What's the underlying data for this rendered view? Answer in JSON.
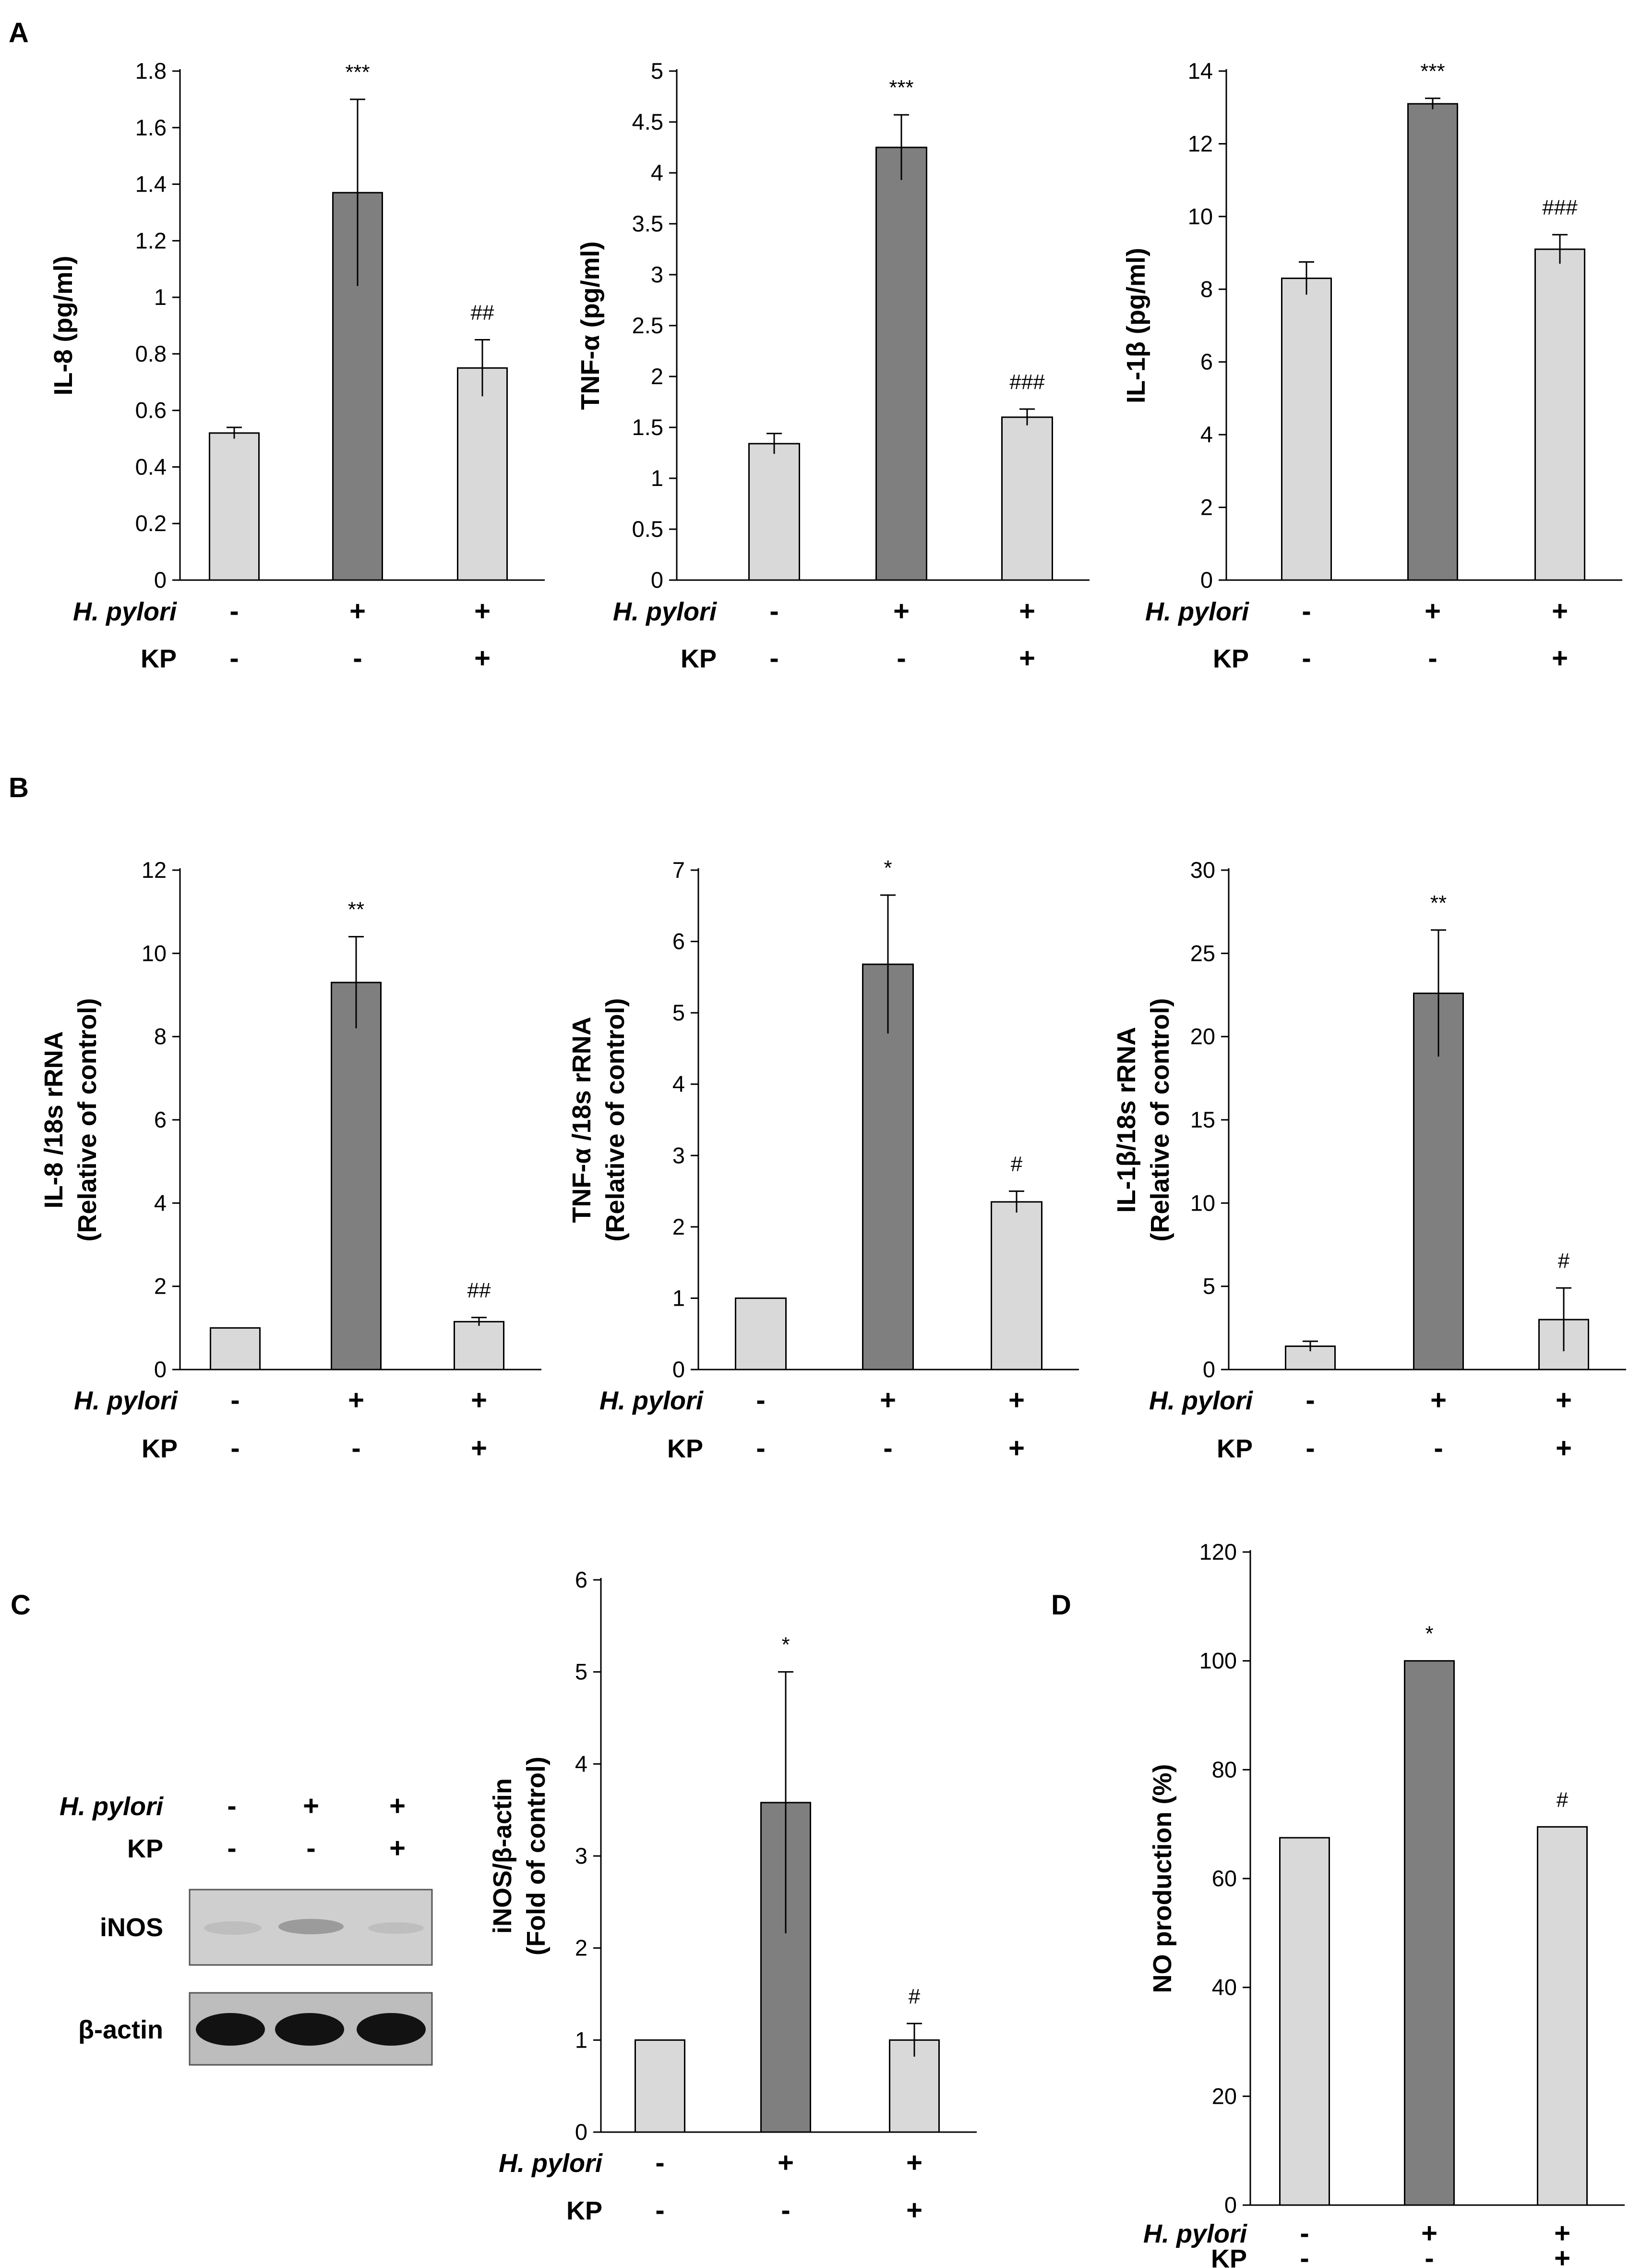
{
  "figure": {
    "panel_labels": [
      "A",
      "B",
      "C",
      "D"
    ]
  },
  "conditions": {
    "row1_label": "H. pylori",
    "row2_label": "KP",
    "row1_signs": [
      "-",
      "+",
      "+"
    ],
    "row2_signs": [
      "-",
      "-",
      "+"
    ]
  },
  "colors": {
    "control_bar": "#d9d9d9",
    "hp_bar": "#7f7f7f",
    "kp_bar": "#d9d9d9",
    "axis": "#000000"
  },
  "western_blot": {
    "title": "C",
    "condition_row1_label": "H. pylori",
    "condition_row2_label": "KP",
    "row1_signs": [
      "-",
      "+",
      "+"
    ],
    "row2_signs": [
      "-",
      "-",
      "+"
    ],
    "bands": [
      {
        "name": "iNOS",
        "intensities": [
          0.05,
          0.35,
          0.1
        ]
      },
      {
        "name": "β-actin",
        "intensities": [
          1.0,
          1.0,
          1.0
        ]
      }
    ]
  },
  "chart_data": [
    {
      "id": "A1",
      "panel": "A",
      "type": "bar",
      "ylabel": "IL-8 (pg/ml)",
      "ylim": [
        0,
        1.8
      ],
      "yticks": [
        "0",
        "0.2",
        "0.4",
        "0.6",
        "0.8",
        "1",
        "1.2",
        "1.4",
        "1.6",
        "1.8"
      ],
      "values": [
        0.52,
        1.37,
        0.75
      ],
      "errors": [
        0.02,
        0.33,
        0.1
      ],
      "annotations": [
        "",
        "***",
        "##"
      ]
    },
    {
      "id": "A2",
      "panel": "A",
      "type": "bar",
      "ylabel": "TNF-α (pg/ml)",
      "ylim": [
        0,
        5
      ],
      "yticks": [
        "0",
        "0.5",
        "1",
        "1.5",
        "2",
        "2.5",
        "3",
        "3.5",
        "4",
        "4.5",
        "5"
      ],
      "values": [
        1.34,
        4.25,
        1.6
      ],
      "errors": [
        0.1,
        0.32,
        0.08
      ],
      "annotations": [
        "",
        "***",
        "###"
      ]
    },
    {
      "id": "A3",
      "panel": "A",
      "type": "bar",
      "ylabel": "IL-1β (pg/ml)",
      "ylim": [
        0,
        14
      ],
      "yticks": [
        "0",
        "2",
        "4",
        "6",
        "8",
        "10",
        "12",
        "14"
      ],
      "values": [
        8.3,
        13.1,
        9.1
      ],
      "errors": [
        0.45,
        0.15,
        0.4
      ],
      "annotations": [
        "",
        "***",
        "###"
      ]
    },
    {
      "id": "B1",
      "panel": "B",
      "type": "bar",
      "ylabel": "IL-8 /18s rRNA",
      "ylabel2": "(Relative of control)",
      "ylim": [
        0,
        12
      ],
      "yticks": [
        "0",
        "2",
        "4",
        "6",
        "8",
        "10",
        "12"
      ],
      "values": [
        1.0,
        9.3,
        1.15
      ],
      "errors": [
        0.0,
        1.1,
        0.1
      ],
      "annotations": [
        "",
        "**",
        "##"
      ]
    },
    {
      "id": "B2",
      "panel": "B",
      "type": "bar",
      "ylabel": "TNF-α /18s rRNA",
      "ylabel2": "(Relative of control)",
      "ylim": [
        0,
        7
      ],
      "yticks": [
        "0",
        "1",
        "2",
        "3",
        "4",
        "5",
        "6",
        "7"
      ],
      "values": [
        1.0,
        5.68,
        2.35
      ],
      "errors": [
        0.0,
        0.97,
        0.15
      ],
      "annotations": [
        "",
        "*",
        "#"
      ]
    },
    {
      "id": "B3",
      "panel": "B",
      "type": "bar",
      "ylabel": "IL-1β/18s rRNA",
      "ylabel2": "(Relative of control)",
      "ylim": [
        0,
        30
      ],
      "yticks": [
        "0",
        "5",
        "10",
        "15",
        "20",
        "25",
        "30"
      ],
      "values": [
        1.4,
        22.6,
        3.0
      ],
      "errors": [
        0.3,
        3.8,
        1.9
      ],
      "annotations": [
        "",
        "**",
        "#"
      ]
    },
    {
      "id": "C1",
      "panel": "C",
      "type": "bar",
      "ylabel": "iNOS/β-actin",
      "ylabel2": "(Fold of control)",
      "ylim": [
        0,
        6
      ],
      "yticks": [
        "0",
        "1",
        "2",
        "3",
        "4",
        "5",
        "6"
      ],
      "values": [
        1.0,
        3.58,
        1.0
      ],
      "errors": [
        0.0,
        1.42,
        0.18
      ],
      "annotations": [
        "",
        "*",
        "#"
      ]
    },
    {
      "id": "D1",
      "panel": "D",
      "type": "bar",
      "ylabel": "NO production (%)",
      "ylim": [
        0,
        120
      ],
      "yticks": [
        "0",
        "20",
        "40",
        "60",
        "80",
        "100",
        "120"
      ],
      "values": [
        67.5,
        100.0,
        69.5
      ],
      "errors": [
        0.0,
        0.0,
        0.0
      ],
      "annotations": [
        "",
        "*",
        "#"
      ]
    }
  ]
}
